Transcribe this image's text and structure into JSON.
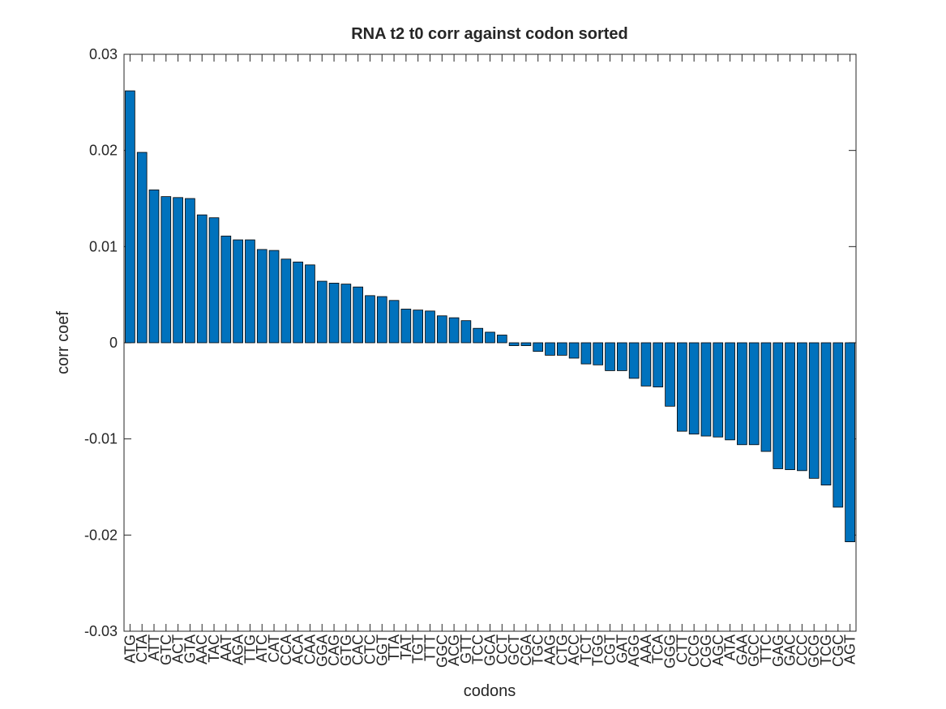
{
  "chart_data": {
    "type": "bar",
    "title": "RNA t2 t0 corr against codon sorted",
    "xlabel": "codons",
    "ylabel": "corr coef",
    "color": "#0072bd",
    "categories": [
      "ATG",
      "CTA",
      "ATT",
      "GTC",
      "ACT",
      "GTA",
      "AAC",
      "TAC",
      "AAT",
      "AGA",
      "TTG",
      "ATC",
      "CAT",
      "CCA",
      "ACA",
      "CAA",
      "GGA",
      "CAG",
      "GTG",
      "CAC",
      "CTC",
      "GGT",
      "TTA",
      "TAT",
      "TGT",
      "TTT",
      "GGC",
      "ACG",
      "GTT",
      "TCC",
      "GCA",
      "CCT",
      "GCT",
      "CGA",
      "TGC",
      "AAG",
      "CTG",
      "ACC",
      "TCT",
      "TGG",
      "CGT",
      "GAT",
      "AGG",
      "AAA",
      "TCA",
      "GGG",
      "CTT",
      "CCG",
      "CGG",
      "AGC",
      "ATA",
      "GAA",
      "GCC",
      "TTC",
      "GAG",
      "GAC",
      "CCC",
      "GCG",
      "TCG",
      "CGC",
      "AGT"
    ],
    "values": [
      0.0262,
      0.0198,
      0.0159,
      0.0152,
      0.0151,
      0.015,
      0.0133,
      0.013,
      0.0111,
      0.0107,
      0.0107,
      0.0097,
      0.0096,
      0.0087,
      0.0084,
      0.0081,
      0.0064,
      0.0062,
      0.0061,
      0.0058,
      0.0049,
      0.0048,
      0.0044,
      0.0035,
      0.0034,
      0.0033,
      0.0028,
      0.0026,
      0.0023,
      0.0015,
      0.0011,
      0.0008,
      -0.0003,
      -0.0003,
      -0.0009,
      -0.0013,
      -0.0013,
      -0.0016,
      -0.0022,
      -0.0023,
      -0.0029,
      -0.0029,
      -0.0037,
      -0.0045,
      -0.0046,
      -0.0066,
      -0.0092,
      -0.0095,
      -0.0097,
      -0.0098,
      -0.0101,
      -0.0106,
      -0.0106,
      -0.0113,
      -0.0131,
      -0.0132,
      -0.0133,
      -0.0141,
      -0.0148,
      -0.0171,
      -0.0207
    ],
    "ylim": [
      -0.03,
      0.03
    ],
    "yticks": [
      -0.03,
      -0.02,
      -0.01,
      0,
      0.01,
      0.02,
      0.03
    ]
  }
}
